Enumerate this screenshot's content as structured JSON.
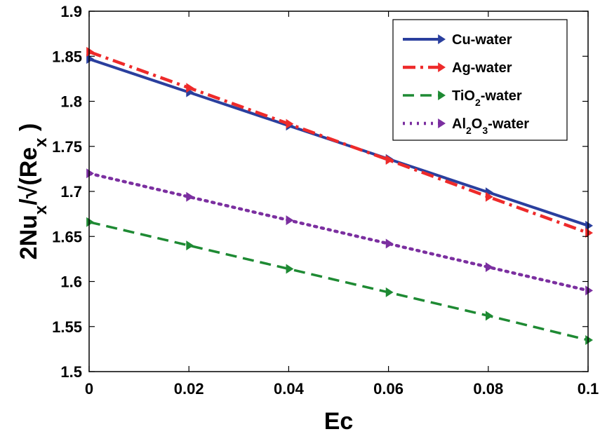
{
  "chart_data": {
    "type": "line",
    "title": "",
    "xlabel": "Ec",
    "ylabel_parts": {
      "main": "2Nu",
      "sub_x": "x",
      "middle": "/√(Re",
      "sub_x2": "x",
      "close": " )"
    },
    "x": [
      0,
      0.02,
      0.04,
      0.06,
      0.08,
      0.1
    ],
    "xlim": [
      0,
      0.1
    ],
    "ylim": [
      1.5,
      1.9
    ],
    "xticks": [
      "0",
      "0.02",
      "0.04",
      "0.06",
      "0.08",
      "0.1"
    ],
    "yticks": [
      "1.5",
      "1.55",
      "1.6",
      "1.65",
      "1.7",
      "1.75",
      "1.8",
      "1.85",
      "1.9"
    ],
    "grid": false,
    "legend_position": "top-right",
    "series": [
      {
        "name": "Cu-water",
        "legend_parts": {
          "pre": "Cu-water"
        },
        "color": "#2a3f9e",
        "dash": "solid",
        "values": [
          1.847,
          1.81,
          1.773,
          1.736,
          1.699,
          1.662
        ]
      },
      {
        "name": "Ag-water",
        "legend_parts": {
          "pre": "Ag-water"
        },
        "color": "#ee2a2a",
        "dash": "dashdot",
        "values": [
          1.855,
          1.815,
          1.775,
          1.735,
          1.694,
          1.654
        ]
      },
      {
        "name": "TiO2-water",
        "legend_parts": {
          "pre": "TiO",
          "sub1": "2",
          "post": "-water"
        },
        "color": "#1e8a33",
        "dash": "dashed",
        "values": [
          1.666,
          1.64,
          1.614,
          1.588,
          1.562,
          1.535
        ]
      },
      {
        "name": "Al2O3-water",
        "legend_parts": {
          "pre": "Al",
          "sub1": "2",
          "mid": "O",
          "sub2": "3",
          "post": "-water"
        },
        "color": "#7b2fa0",
        "dash": "dotted",
        "values": [
          1.72,
          1.694,
          1.668,
          1.642,
          1.616,
          1.59
        ]
      }
    ]
  }
}
